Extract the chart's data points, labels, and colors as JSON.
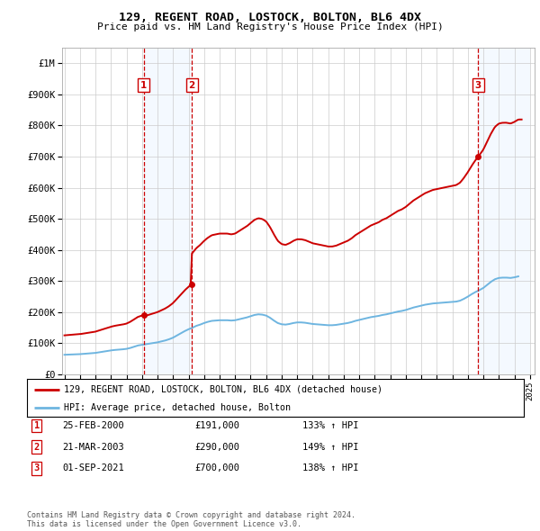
{
  "title": "129, REGENT ROAD, LOSTOCK, BOLTON, BL6 4DX",
  "subtitle": "Price paid vs. HM Land Registry's House Price Index (HPI)",
  "hpi_line_color": "#6eb5e0",
  "price_line_color": "#cc0000",
  "vline_color": "#cc0000",
  "shade_color": "#ddeeff",
  "background_color": "#ffffff",
  "grid_color": "#cccccc",
  "ylim": [
    0,
    1050000
  ],
  "yticks": [
    0,
    100000,
    200000,
    300000,
    400000,
    500000,
    600000,
    700000,
    800000,
    900000,
    1000000
  ],
  "ytick_labels": [
    "£0",
    "£100K",
    "£200K",
    "£300K",
    "£400K",
    "£500K",
    "£600K",
    "£700K",
    "£800K",
    "£900K",
    "£1M"
  ],
  "sale_dates_num": [
    2000.12,
    2003.21,
    2021.67
  ],
  "sale_prices": [
    191000,
    290000,
    700000
  ],
  "sale_labels": [
    "1",
    "2",
    "3"
  ],
  "legend_entries": [
    "129, REGENT ROAD, LOSTOCK, BOLTON, BL6 4DX (detached house)",
    "HPI: Average price, detached house, Bolton"
  ],
  "table_rows": [
    [
      "1",
      "25-FEB-2000",
      "£191,000",
      "133% ↑ HPI"
    ],
    [
      "2",
      "21-MAR-2003",
      "£290,000",
      "149% ↑ HPI"
    ],
    [
      "3",
      "01-SEP-2021",
      "£700,000",
      "138% ↑ HPI"
    ]
  ],
  "footnote": "Contains HM Land Registry data © Crown copyright and database right 2024.\nThis data is licensed under the Open Government Licence v3.0.",
  "hpi_years": [
    1995.0,
    1995.25,
    1995.5,
    1995.75,
    1996.0,
    1996.25,
    1996.5,
    1996.75,
    1997.0,
    1997.25,
    1997.5,
    1997.75,
    1998.0,
    1998.25,
    1998.5,
    1998.75,
    1999.0,
    1999.25,
    1999.5,
    1999.75,
    2000.0,
    2000.25,
    2000.5,
    2000.75,
    2001.0,
    2001.25,
    2001.5,
    2001.75,
    2002.0,
    2002.25,
    2002.5,
    2002.75,
    2003.0,
    2003.25,
    2003.5,
    2003.75,
    2004.0,
    2004.25,
    2004.5,
    2004.75,
    2005.0,
    2005.25,
    2005.5,
    2005.75,
    2006.0,
    2006.25,
    2006.5,
    2006.75,
    2007.0,
    2007.25,
    2007.5,
    2007.75,
    2008.0,
    2008.25,
    2008.5,
    2008.75,
    2009.0,
    2009.25,
    2009.5,
    2009.75,
    2010.0,
    2010.25,
    2010.5,
    2010.75,
    2011.0,
    2011.25,
    2011.5,
    2011.75,
    2012.0,
    2012.25,
    2012.5,
    2012.75,
    2013.0,
    2013.25,
    2013.5,
    2013.75,
    2014.0,
    2014.25,
    2014.5,
    2014.75,
    2015.0,
    2015.25,
    2015.5,
    2015.75,
    2016.0,
    2016.25,
    2016.5,
    2016.75,
    2017.0,
    2017.25,
    2017.5,
    2017.75,
    2018.0,
    2018.25,
    2018.5,
    2018.75,
    2019.0,
    2019.25,
    2019.5,
    2019.75,
    2020.0,
    2020.25,
    2020.5,
    2020.75,
    2021.0,
    2021.25,
    2021.5,
    2021.75,
    2022.0,
    2022.25,
    2022.5,
    2022.75,
    2023.0,
    2023.25,
    2023.5,
    2023.75,
    2024.0,
    2024.25
  ],
  "hpi_values": [
    63000,
    63500,
    64000,
    64500,
    65000,
    66000,
    67000,
    68000,
    69000,
    71000,
    73000,
    75000,
    77000,
    78500,
    79500,
    80500,
    82000,
    85000,
    89000,
    93000,
    95000,
    97000,
    99000,
    101000,
    103000,
    106000,
    109000,
    113000,
    118000,
    125000,
    132000,
    139000,
    145000,
    150000,
    156000,
    160000,
    165000,
    169000,
    172000,
    173000,
    174000,
    174000,
    174000,
    173000,
    174000,
    177000,
    180000,
    183000,
    187000,
    191000,
    193000,
    192000,
    189000,
    182000,
    173000,
    165000,
    161000,
    160000,
    162000,
    165000,
    167000,
    167000,
    166000,
    164000,
    162000,
    161000,
    160000,
    159000,
    158000,
    158000,
    159000,
    161000,
    163000,
    165000,
    168000,
    172000,
    175000,
    178000,
    181000,
    184000,
    186000,
    188000,
    191000,
    193000,
    196000,
    199000,
    202000,
    204000,
    207000,
    211000,
    215000,
    218000,
    221000,
    224000,
    226000,
    228000,
    229000,
    230000,
    231000,
    232000,
    233000,
    234000,
    237000,
    243000,
    250000,
    258000,
    265000,
    271000,
    278000,
    288000,
    298000,
    306000,
    310000,
    311000,
    311000,
    310000,
    312000,
    315000
  ]
}
